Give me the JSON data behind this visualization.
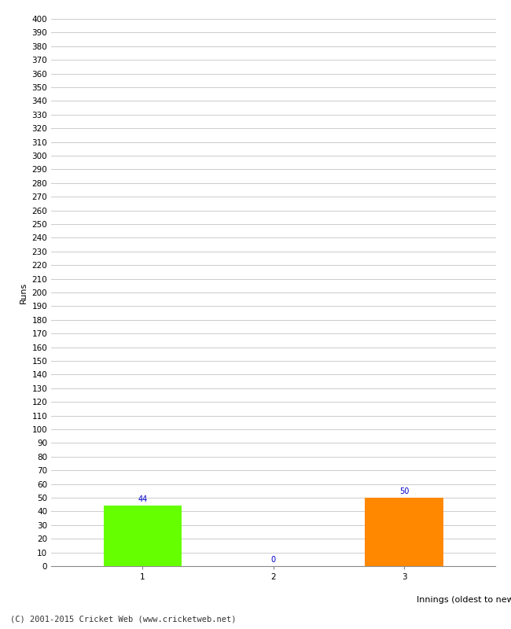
{
  "categories": [
    "1",
    "2",
    "3"
  ],
  "values": [
    44,
    0,
    50
  ],
  "bar_colors": [
    "#66ff00",
    "#cccccc",
    "#ff8800"
  ],
  "title": "",
  "ylabel": "Runs",
  "xlabel": "Innings (oldest to newest)",
  "ylim": [
    0,
    400
  ],
  "annotation_color": "#0000cc",
  "annotation_fontsize": 7,
  "footer": "(C) 2001-2015 Cricket Web (www.cricketweb.net)",
  "background_color": "#ffffff",
  "grid_color": "#cccccc",
  "tick_label_fontsize": 7.5
}
